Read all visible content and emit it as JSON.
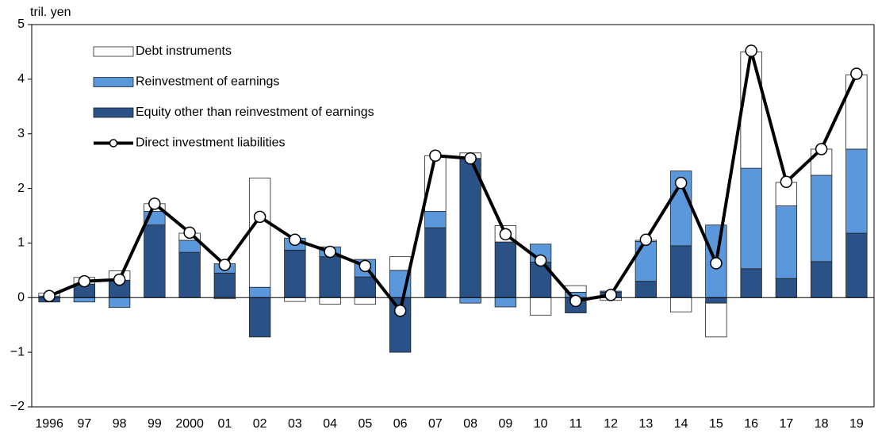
{
  "chart_data": {
    "type": "stacked-bar-line",
    "unit_label": "tril. yen",
    "categories": [
      "1996",
      "97",
      "98",
      "99",
      "2000",
      "01",
      "02",
      "03",
      "04",
      "05",
      "06",
      "07",
      "08",
      "09",
      "10",
      "11",
      "12",
      "13",
      "14",
      "15",
      "16",
      "17",
      "18",
      "19"
    ],
    "series": [
      {
        "name": "Equity other than reinvestment of earnings",
        "color": "#2a5286",
        "kind": "bar",
        "values": [
          -0.08,
          0.25,
          0.32,
          1.33,
          0.83,
          0.45,
          -0.72,
          0.87,
          0.75,
          0.38,
          -1.0,
          1.28,
          2.55,
          1.02,
          0.65,
          -0.28,
          0.1,
          0.3,
          0.95,
          -0.1,
          0.53,
          0.35,
          0.66,
          1.18
        ]
      },
      {
        "name": "Reinvestment of earnings",
        "color": "#5b97db",
        "kind": "bar",
        "values": [
          0.03,
          -0.08,
          -0.18,
          0.25,
          0.22,
          0.17,
          0.19,
          0.22,
          0.18,
          0.32,
          0.5,
          0.3,
          -0.1,
          -0.17,
          0.33,
          0.1,
          0.02,
          0.73,
          1.37,
          1.33,
          1.84,
          1.33,
          1.58,
          1.54
        ]
      },
      {
        "name": "Debt instruments",
        "color": "#ffffff",
        "kind": "bar",
        "values": [
          0.05,
          0.12,
          0.17,
          0.14,
          0.13,
          -0.02,
          2.0,
          -0.07,
          -0.12,
          -0.12,
          0.25,
          1.02,
          0.1,
          0.3,
          -0.32,
          0.12,
          -0.05,
          0.02,
          -0.26,
          -0.62,
          2.13,
          0.43,
          0.48,
          1.36
        ]
      },
      {
        "name": "Direct investment liabilities",
        "color": "#000000",
        "kind": "line",
        "values": [
          0.03,
          0.3,
          0.33,
          1.72,
          1.19,
          0.6,
          1.48,
          1.06,
          0.84,
          0.58,
          -0.24,
          2.6,
          2.55,
          1.16,
          0.68,
          -0.06,
          0.05,
          1.06,
          2.1,
          0.63,
          4.52,
          2.12,
          2.72,
          4.1
        ]
      }
    ],
    "ylim": [
      -2,
      5
    ],
    "yticks": [
      {
        "value": -2,
        "label": "−2"
      },
      {
        "value": -1,
        "label": "−1"
      },
      0,
      1,
      2,
      3,
      4,
      5
    ],
    "legend": "top-left"
  }
}
